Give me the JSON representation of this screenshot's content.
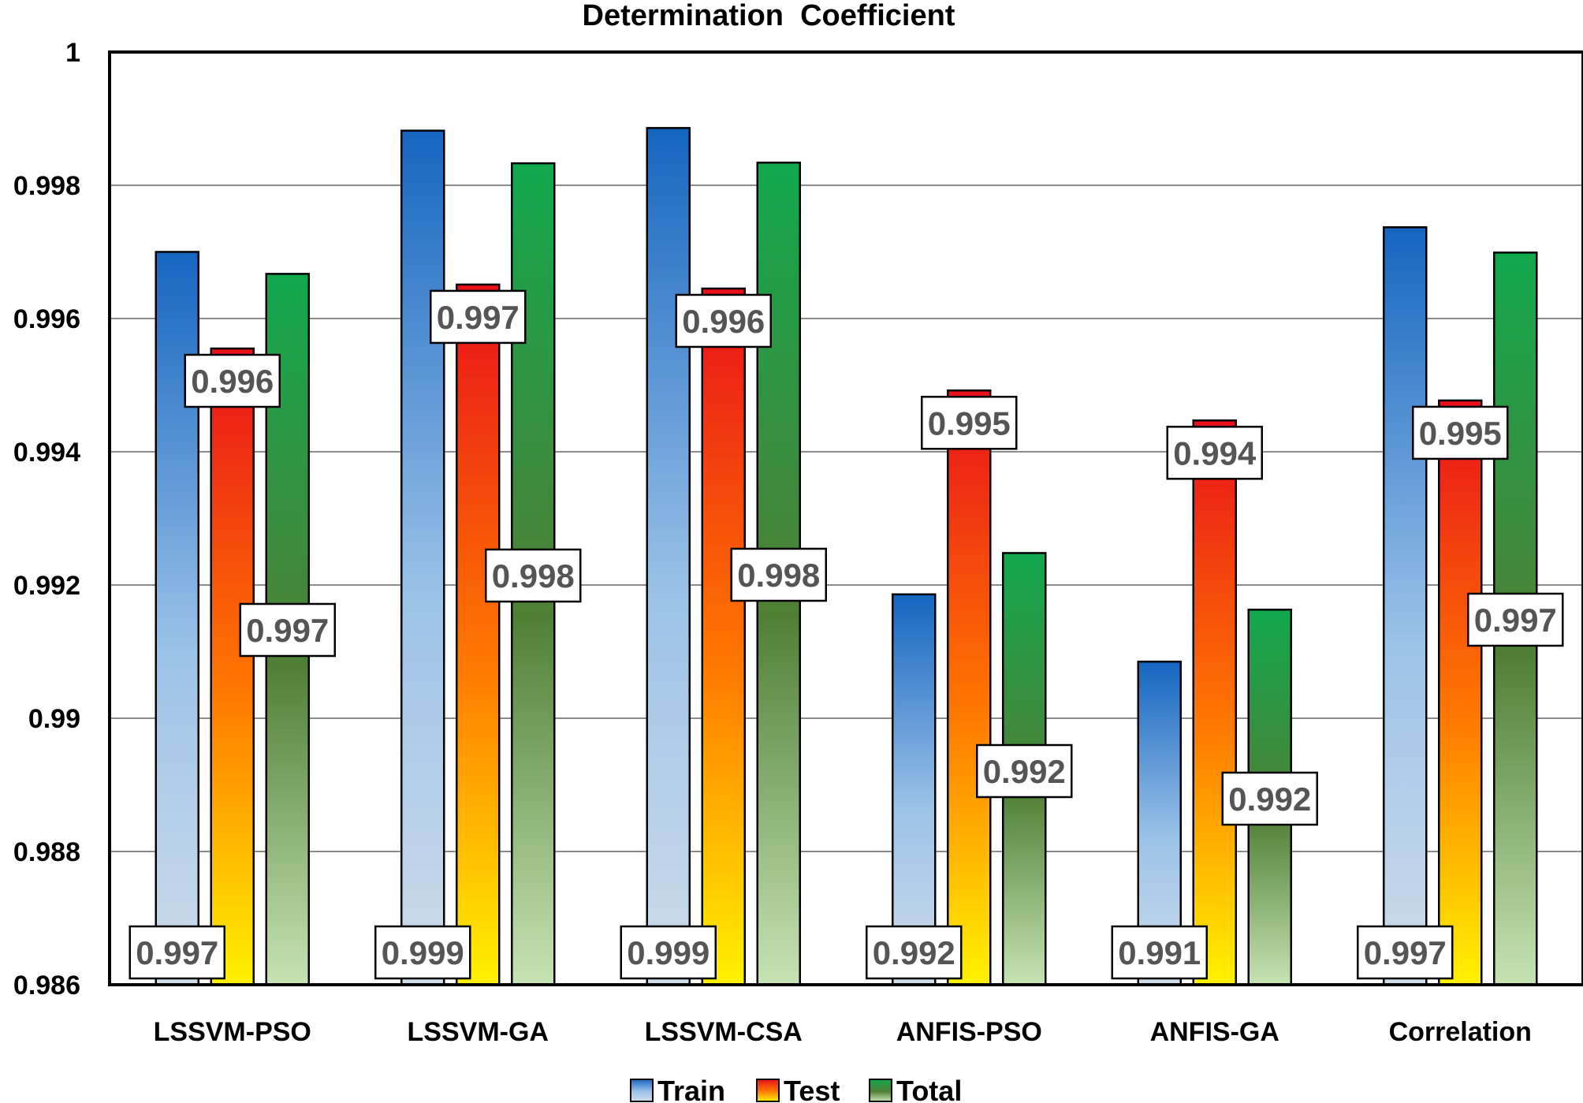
{
  "chart_data": {
    "type": "bar",
    "title": "Determination  Coefficient",
    "xlabel": "",
    "ylabel": "",
    "ylim": [
      0.986,
      1.0
    ],
    "yticks": [
      0.986,
      0.988,
      0.99,
      0.992,
      0.994,
      0.996,
      0.998,
      1
    ],
    "ytick_labels": [
      "0.986",
      "0.988",
      "0.99",
      "0.992",
      "0.994",
      "0.996",
      "0.998",
      "1"
    ],
    "grid": true,
    "legend_position": "bottom",
    "categories": [
      "LSSVM-PSO",
      "LSSVM-GA",
      "LSSVM-CSA",
      "ANFIS-PSO",
      "ANFIS-GA",
      "Correlation"
    ],
    "series": [
      {
        "name": "Train",
        "values": [
          0.997,
          0.99882,
          0.99886,
          0.99186,
          0.99085,
          0.99737
        ],
        "labels": [
          "0.997",
          "0.999",
          "0.999",
          "0.992",
          "0.991",
          "0.997"
        ],
        "colors": {
          "top": "#1565c0",
          "mid": "#9cc3e8",
          "bottom": "#cfdcea"
        }
      },
      {
        "name": "Test",
        "values": [
          0.99555,
          0.99651,
          0.99645,
          0.99492,
          0.99447,
          0.99477
        ],
        "labels": [
          "0.996",
          "0.997",
          "0.996",
          "0.995",
          "0.994",
          "0.995"
        ],
        "colors": {
          "top": "#e8101a",
          "mid": "#ff7a00",
          "bottom": "#fff200"
        }
      },
      {
        "name": "Total",
        "values": [
          0.99667,
          0.99833,
          0.99834,
          0.99248,
          0.99163,
          0.99699
        ],
        "labels": [
          "0.997",
          "0.998",
          "0.998",
          "0.992",
          "0.992",
          "0.997"
        ],
        "colors": {
          "top": "#12a84e",
          "mid": "#4f7f35",
          "bottom": "#c6e3b4"
        }
      }
    ]
  }
}
